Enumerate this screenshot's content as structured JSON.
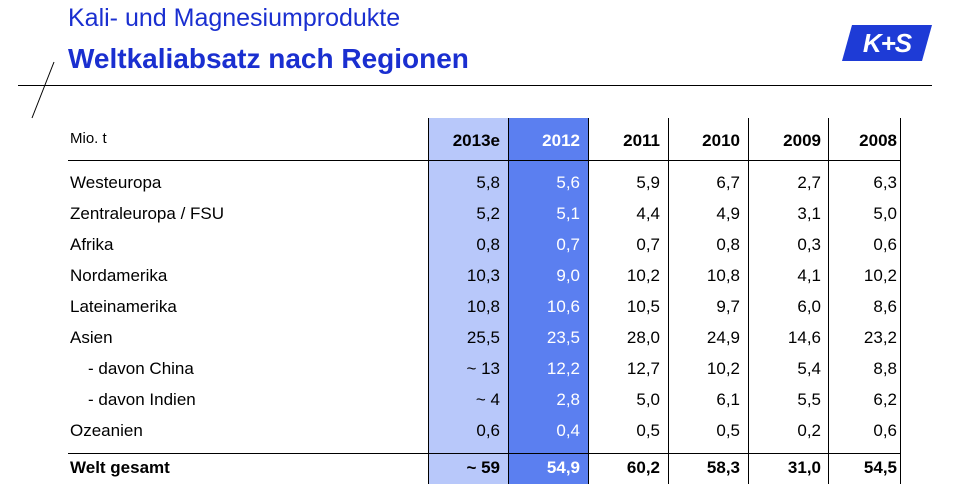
{
  "header": {
    "title": "Kali- und Magnesiumprodukte",
    "subtitle": "Weltkaliabsatz nach Regionen",
    "logo_text": "K+S"
  },
  "colors": {
    "title": "#1a2fd0",
    "col_2013e": "#b8c8fa",
    "col_2012": "#5b7ff0",
    "logo": "#1e3bd6"
  },
  "table": {
    "unit": "Mio. t",
    "years": [
      "2013e",
      "2012",
      "2011",
      "2010",
      "2009",
      "2008"
    ],
    "rows": [
      {
        "label": "Westeuropa",
        "values": [
          "5,8",
          "5,6",
          "5,9",
          "6,7",
          "2,7",
          "6,3"
        ]
      },
      {
        "label": "Zentraleuropa / FSU",
        "values": [
          "5,2",
          "5,1",
          "4,4",
          "4,9",
          "3,1",
          "5,0"
        ]
      },
      {
        "label": "Afrika",
        "values": [
          "0,8",
          "0,7",
          "0,7",
          "0,8",
          "0,3",
          "0,6"
        ]
      },
      {
        "label": "Nordamerika",
        "values": [
          "10,3",
          "9,0",
          "10,2",
          "10,8",
          "4,1",
          "10,2"
        ]
      },
      {
        "label": "Lateinamerika",
        "values": [
          "10,8",
          "10,6",
          "10,5",
          "9,7",
          "6,0",
          "8,6"
        ]
      },
      {
        "label": "Asien",
        "values": [
          "25,5",
          "23,5",
          "28,0",
          "24,9",
          "14,6",
          "23,2"
        ]
      },
      {
        "label": "- davon China",
        "values": [
          "~ 13",
          "12,2",
          "12,7",
          "10,2",
          "5,4",
          "8,8"
        ]
      },
      {
        "label": "- davon Indien",
        "values": [
          "~ 4",
          "2,8",
          "5,0",
          "6,1",
          "5,5",
          "6,2"
        ]
      },
      {
        "label": "Ozeanien",
        "values": [
          "0,6",
          "0,4",
          "0,5",
          "0,5",
          "0,2",
          "0,6"
        ]
      }
    ],
    "total": {
      "label": "Welt gesamt",
      "values": [
        "~ 59",
        "54,9",
        "60,2",
        "58,3",
        "31,0",
        "54,5"
      ]
    }
  }
}
